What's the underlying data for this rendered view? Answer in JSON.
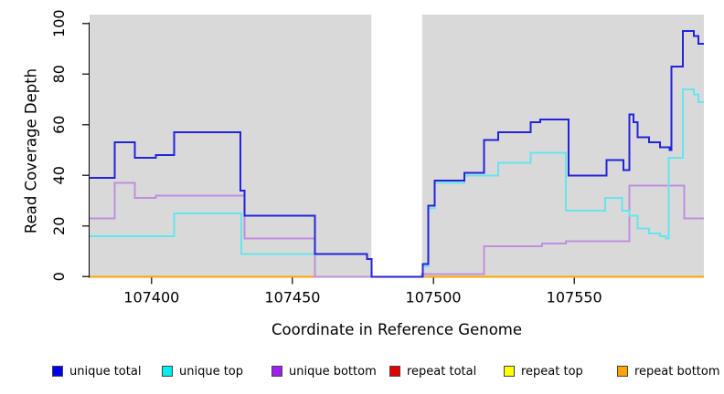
{
  "chart_data": {
    "type": "line",
    "subtype": "step-coverage",
    "title": "",
    "xlabel": "Coordinate in Reference Genome",
    "ylabel": "Read Coverage Depth",
    "xlim": [
      107378,
      107596
    ],
    "ylim": [
      0,
      100
    ],
    "x_ticks": [
      107400,
      107450,
      107500,
      107550
    ],
    "y_ticks": [
      0,
      20,
      40,
      60,
      80,
      100
    ],
    "grid": "off",
    "legend_position": "bottom",
    "plot_background": "#D9D9D9",
    "axis_color": "#000000",
    "coverage_regions": [
      [
        107378,
        107478
      ],
      [
        107496,
        107596
      ]
    ],
    "gap_region": [
      107478,
      107496
    ],
    "draw_order": [
      "repeat total",
      "repeat top",
      "repeat bottom",
      "unique bottom",
      "unique top",
      "unique total"
    ],
    "series": [
      {
        "name": "unique total",
        "legend_color": "#0000EE",
        "line_color": "#2323DC",
        "steps": [
          [
            107378,
            39
          ],
          [
            107387,
            53
          ],
          [
            107394,
            47
          ],
          [
            107401.5,
            48
          ],
          [
            107408,
            57
          ],
          [
            107431.5,
            34
          ],
          [
            107433,
            24
          ],
          [
            107458,
            9
          ],
          [
            107476.5,
            7
          ],
          [
            107478,
            0
          ],
          [
            107496.2,
            5
          ],
          [
            107498.2,
            28
          ],
          [
            107500.5,
            38
          ],
          [
            107511,
            41
          ],
          [
            107518,
            54
          ],
          [
            107523,
            57
          ],
          [
            107534.5,
            61
          ],
          [
            107538,
            62
          ],
          [
            107548,
            40
          ],
          [
            107561.5,
            46
          ],
          [
            107567.5,
            42
          ],
          [
            107569.5,
            64
          ],
          [
            107571,
            61
          ],
          [
            107572.5,
            55
          ],
          [
            107576.5,
            53
          ],
          [
            107580.5,
            51
          ],
          [
            107583.8,
            50
          ],
          [
            107584.5,
            83
          ],
          [
            107588.5,
            97
          ],
          [
            107592.5,
            95
          ],
          [
            107594,
            92
          ]
        ]
      },
      {
        "name": "unique top",
        "legend_color": "#00EEEE",
        "line_color": "#66E5EE",
        "steps": [
          [
            107378,
            16
          ],
          [
            107408,
            25
          ],
          [
            107431.8,
            9
          ],
          [
            107476.5,
            7
          ],
          [
            107478,
            0
          ],
          [
            107496.2,
            4
          ],
          [
            107498.2,
            27
          ],
          [
            107500.5,
            37
          ],
          [
            107511,
            40
          ],
          [
            107523,
            45
          ],
          [
            107534.5,
            49
          ],
          [
            107547,
            26
          ],
          [
            107561,
            31
          ],
          [
            107567,
            26
          ],
          [
            107569.5,
            24
          ],
          [
            107572.5,
            19
          ],
          [
            107576.5,
            17
          ],
          [
            107580.5,
            16
          ],
          [
            107582.5,
            15
          ],
          [
            107583.5,
            47
          ],
          [
            107588.5,
            74
          ],
          [
            107592.5,
            72
          ],
          [
            107594,
            69
          ]
        ]
      },
      {
        "name": "unique bottom",
        "legend_color": "#A020F0",
        "line_color": "#BF8FE0",
        "steps": [
          [
            107378,
            23
          ],
          [
            107387,
            37
          ],
          [
            107394,
            31
          ],
          [
            107401.5,
            32
          ],
          [
            107433,
            15
          ],
          [
            107458,
            0
          ],
          [
            107496,
            1
          ],
          [
            107518,
            12
          ],
          [
            107538.5,
            13
          ],
          [
            107547,
            14
          ],
          [
            107569.5,
            36
          ],
          [
            107589,
            23
          ]
        ]
      },
      {
        "name": "repeat total",
        "legend_color": "#E60000",
        "line_color": "#DC2323",
        "steps": [
          [
            107378,
            0
          ]
        ]
      },
      {
        "name": "repeat top",
        "legend_color": "#FFFF00",
        "line_color": "#F0F000",
        "steps": [
          [
            107378,
            0
          ]
        ]
      },
      {
        "name": "repeat bottom",
        "legend_color": "#FFA500",
        "line_color": "#FFA500",
        "steps": [
          [
            107378,
            0
          ]
        ]
      }
    ]
  }
}
